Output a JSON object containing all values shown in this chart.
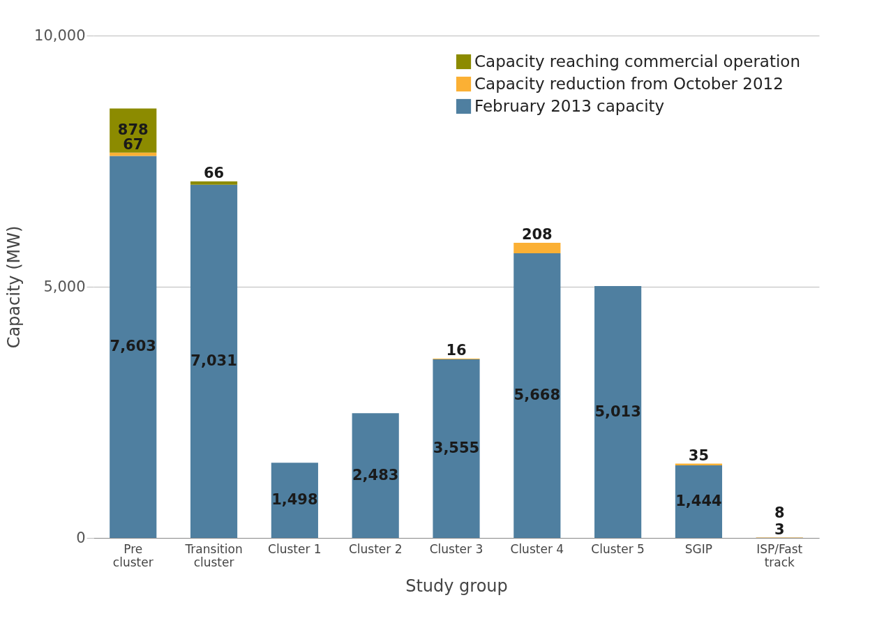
{
  "chart_data": {
    "type": "bar",
    "stacked": true,
    "xlabel": "Study group",
    "ylabel": "Capacity (MW)",
    "categories": [
      "Pre\ncluster",
      "Transition\ncluster",
      "Cluster 1",
      "Cluster 2",
      "Cluster 3",
      "Cluster 4",
      "Cluster 5",
      "SGIP",
      "ISP/Fast\ntrack"
    ],
    "series": [
      {
        "name": "February 2013 capacity",
        "color": "#4f7fa0",
        "values": [
          7603,
          7031,
          1498,
          2483,
          3555,
          5668,
          5013,
          1444,
          3
        ],
        "value_labels": [
          "7,603",
          "7,031",
          "1,498",
          "2,483",
          "3,555",
          "5,668",
          "5,013",
          "1,444",
          "3"
        ]
      },
      {
        "name": "Capacity reduction from October 2012",
        "color": "#fbb034",
        "values": [
          67,
          null,
          null,
          null,
          16,
          208,
          null,
          35,
          8
        ],
        "value_labels": [
          "67",
          null,
          null,
          null,
          "16",
          "208",
          null,
          "35",
          "8"
        ]
      },
      {
        "name": "Capacity reaching commercial operation",
        "color": "#8c8b00",
        "values": [
          878,
          66,
          null,
          null,
          null,
          null,
          null,
          null,
          null
        ],
        "value_labels": [
          "878",
          "66",
          null,
          null,
          null,
          null,
          null,
          null,
          null
        ]
      }
    ],
    "ylim": [
      0,
      10000
    ],
    "yticks": [
      0,
      {
        "value": 5000,
        "label": "5,000"
      },
      {
        "value": 10000,
        "label": "10,000"
      }
    ],
    "grid": "y",
    "legend": "top right"
  }
}
